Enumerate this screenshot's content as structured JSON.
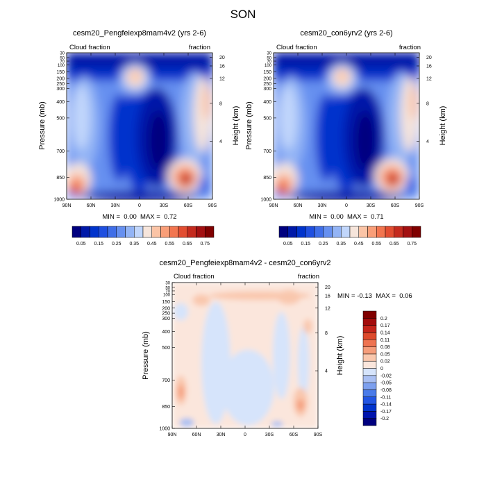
{
  "figure": {
    "title": "SON"
  },
  "colors": {
    "top_levels": [
      "#00007f",
      "#0019a8",
      "#0033cc",
      "#1f4fe0",
      "#3f6ee8",
      "#6690f0",
      "#93b4f5",
      "#c1d6fb",
      "#f6e5db",
      "#fbc4a6",
      "#f99e78",
      "#f2754f",
      "#e24d31",
      "#c42a1e",
      "#a31011",
      "#800000"
    ],
    "diff_levels": [
      "#00007f",
      "#0014ad",
      "#0033cc",
      "#2255e3",
      "#4a7be9",
      "#7da0ef",
      "#aac0f3",
      "#d6e4fb",
      "#fbe6dc",
      "#f9c7ad",
      "#f59d7b",
      "#ee7351",
      "#dd4a2c",
      "#c4241a",
      "#a30c0c",
      "#800000"
    ]
  },
  "chart_data": [
    {
      "id": "left",
      "type": "heatmap",
      "title": "cesm20_Pengfeiexp8mam4v2 (yrs 2-6)",
      "left_label": "Cloud fraction",
      "right_label": "fraction",
      "xlabel": "",
      "ylabel": "Pressure (mb)",
      "y2label": "Height (km)",
      "x_ticks": [
        "90N",
        "60N",
        "30N",
        "0",
        "30S",
        "60S",
        "90S"
      ],
      "y_ticks": [
        "30",
        "50",
        "70",
        "100",
        "150",
        "200",
        "250",
        "300",
        "400",
        "500",
        "700",
        "850",
        "1000"
      ],
      "y2_ticks": [
        "20",
        "16",
        "12",
        "8",
        "4"
      ],
      "stats": "MIN =  0.00  MAX =  0.72",
      "colorbar_labels": [
        "0.05",
        "0.15",
        "0.25",
        "0.35",
        "0.45",
        "0.55",
        "0.65",
        "0.75"
      ],
      "min": 0.0,
      "max": 0.72
    },
    {
      "id": "right",
      "type": "heatmap",
      "title": "cesm20_con6yrv2 (yrs 2-6)",
      "left_label": "Cloud fraction",
      "right_label": "fraction",
      "xlabel": "",
      "ylabel": "Pressure (mb)",
      "y2label": "Height (km)",
      "x_ticks": [
        "90N",
        "60N",
        "30N",
        "0",
        "30S",
        "60S",
        "90S"
      ],
      "y_ticks": [
        "30",
        "50",
        "70",
        "100",
        "150",
        "200",
        "250",
        "300",
        "400",
        "500",
        "700",
        "850",
        "1000"
      ],
      "y2_ticks": [
        "20",
        "16",
        "12",
        "8",
        "4"
      ],
      "stats": "MIN =  0.00  MAX =  0.71",
      "colorbar_labels": [
        "0.05",
        "0.15",
        "0.25",
        "0.35",
        "0.45",
        "0.55",
        "0.65",
        "0.75"
      ],
      "min": 0.0,
      "max": 0.71
    },
    {
      "id": "diff",
      "type": "heatmap",
      "title": "cesm20_Pengfeiexp8mam4v2 - cesm20_con6yrv2",
      "left_label": "Cloud fraction",
      "right_label": "fraction",
      "xlabel": "",
      "ylabel": "Pressure (mb)",
      "y2label": "Height (km)",
      "x_ticks": [
        "90N",
        "60N",
        "30N",
        "0",
        "30S",
        "60S",
        "90S"
      ],
      "y_ticks": [
        "30",
        "50",
        "70",
        "100",
        "150",
        "200",
        "250",
        "300",
        "400",
        "500",
        "700",
        "850",
        "1000"
      ],
      "y2_ticks": [
        "20",
        "16",
        "12",
        "8",
        "4"
      ],
      "stats": "MIN = -0.13  MAX =  0.06",
      "colorbar_labels": [
        "0.2",
        "0.17",
        "0.14",
        "0.11",
        "0.08",
        "0.05",
        "0.02",
        "0",
        "-0.02",
        "-0.05",
        "-0.08",
        "-0.11",
        "-0.14",
        "-0.17",
        "-0.2"
      ],
      "min": -0.13,
      "max": 0.06
    }
  ]
}
